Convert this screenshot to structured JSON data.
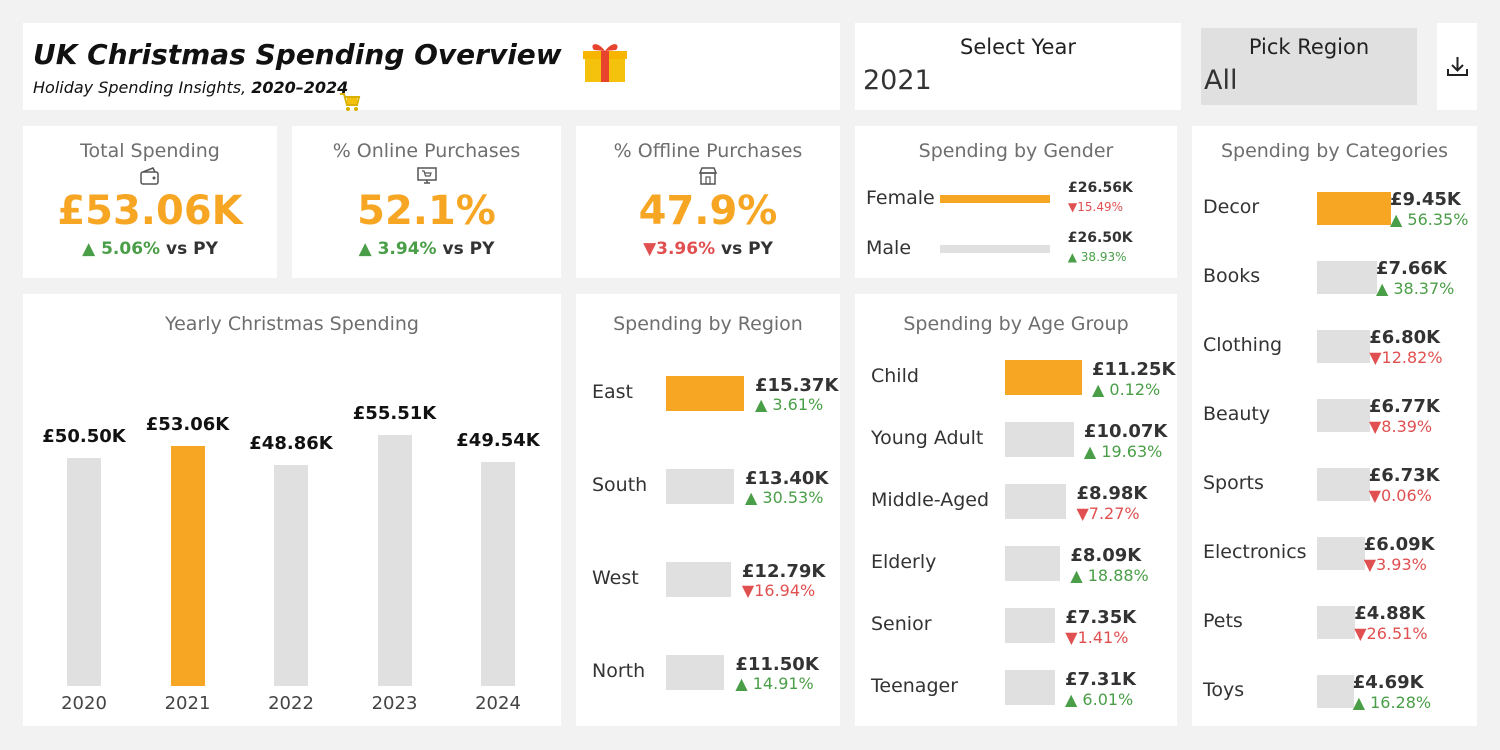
{
  "header": {
    "title": "UK Christmas Spending Overview",
    "subtitle_prefix": "Holiday Spending Insights, ",
    "subtitle_years": "2020–2024"
  },
  "filters": {
    "year_label": "Select Year",
    "year_value": "2021",
    "region_label": "Pick Region",
    "region_value": "All"
  },
  "kpis": [
    {
      "title": "Total Spending",
      "icon": "wallet-icon",
      "value": "£53.06K",
      "change": "▲ 5.06%",
      "direction": "up",
      "vs": "vs PY"
    },
    {
      "title": "% Online Purchases",
      "icon": "monitor-cart-icon",
      "value": "52.1%",
      "change": "▲ 3.94%",
      "direction": "up",
      "vs": "vs PY"
    },
    {
      "title": "% Offline Purchases",
      "icon": "store-icon",
      "value": "47.9%",
      "change": "▼3.96%",
      "direction": "down",
      "vs": "vs PY"
    }
  ],
  "colors": {
    "highlight": "#f7a624",
    "bar": "#e0e0e0",
    "up": "#4a9e47",
    "down": "#e05050"
  },
  "charts": {
    "yearly_title": "Yearly Christmas Spending",
    "gender_title": "Spending by Gender",
    "region_title": "Spending by Region",
    "age_title": "Spending by Age Group",
    "category_title": "Spending by Categories"
  },
  "chart_data": [
    {
      "type": "bar",
      "title": "Yearly Christmas Spending",
      "categories": [
        "2020",
        "2021",
        "2022",
        "2023",
        "2024"
      ],
      "values": [
        50.5,
        53.06,
        48.86,
        55.51,
        49.54
      ],
      "labels": [
        "£50.50K",
        "£53.06K",
        "£48.86K",
        "£55.51K",
        "£49.54K"
      ],
      "highlight": "2021"
    },
    {
      "type": "bar",
      "orientation": "horizontal",
      "title": "Spending by Gender",
      "categories": [
        "Female",
        "Male"
      ],
      "values": [
        26.56,
        26.5
      ],
      "labels": [
        "£26.56K",
        "£26.50K"
      ],
      "changes": [
        "▼15.49%",
        "▲ 38.93%"
      ],
      "directions": [
        "down",
        "up"
      ],
      "highlight": "Female"
    },
    {
      "type": "bar",
      "orientation": "horizontal",
      "title": "Spending by Region",
      "categories": [
        "East",
        "South",
        "West",
        "North"
      ],
      "values": [
        15.37,
        13.4,
        12.79,
        11.5
      ],
      "labels": [
        "£15.37K",
        "£13.40K",
        "£12.79K",
        "£11.50K"
      ],
      "changes": [
        "▲ 3.61%",
        "▲ 30.53%",
        "▼16.94%",
        "▲ 14.91%"
      ],
      "directions": [
        "up",
        "up",
        "down",
        "up"
      ],
      "highlight": "East"
    },
    {
      "type": "bar",
      "orientation": "horizontal",
      "title": "Spending by Age Group",
      "categories": [
        "Child",
        "Young Adult",
        "Middle-Aged",
        "Elderly",
        "Senior",
        "Teenager"
      ],
      "values": [
        11.25,
        10.07,
        8.98,
        8.09,
        7.35,
        7.31
      ],
      "labels": [
        "£11.25K",
        "£10.07K",
        "£8.98K",
        "£8.09K",
        "£7.35K",
        "£7.31K"
      ],
      "changes": [
        "▲ 0.12%",
        "▲ 19.63%",
        "▼7.27%",
        "▲ 18.88%",
        "▼1.41%",
        "▲ 6.01%"
      ],
      "directions": [
        "up",
        "up",
        "down",
        "up",
        "down",
        "up"
      ],
      "highlight": "Child"
    },
    {
      "type": "bar",
      "orientation": "horizontal",
      "title": "Spending by Categories",
      "categories": [
        "Decor",
        "Books",
        "Clothing",
        "Beauty",
        "Sports",
        "Electronics",
        "Pets",
        "Toys"
      ],
      "values": [
        9.45,
        7.66,
        6.8,
        6.77,
        6.73,
        6.09,
        4.88,
        4.69
      ],
      "labels": [
        "£9.45K",
        "£7.66K",
        "£6.80K",
        "£6.77K",
        "£6.73K",
        "£6.09K",
        "£4.88K",
        "£4.69K"
      ],
      "changes": [
        "▲ 56.35%",
        "▲ 38.37%",
        "▼12.82%",
        "▼8.39%",
        "▼0.06%",
        "▼3.93%",
        "▼26.51%",
        "▲ 16.28%"
      ],
      "directions": [
        "up",
        "up",
        "down",
        "down",
        "down",
        "down",
        "down",
        "up"
      ],
      "highlight": "Decor"
    }
  ]
}
